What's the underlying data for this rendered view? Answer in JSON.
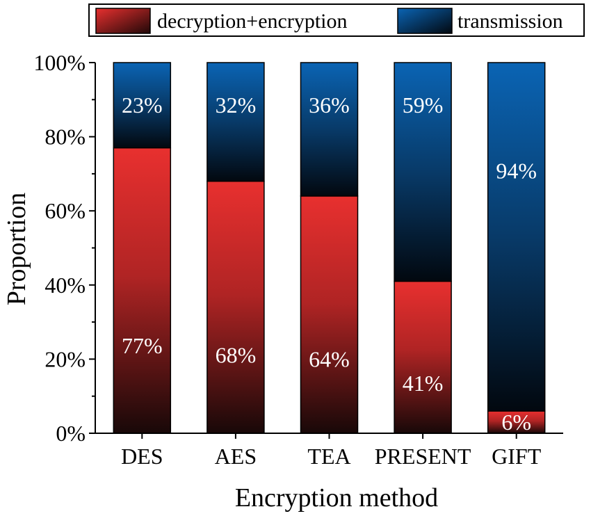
{
  "chart_data": {
    "type": "bar",
    "stacked": true,
    "categories": [
      "DES",
      "AES",
      "TEA",
      "PRESENT",
      "GIFT"
    ],
    "series": [
      {
        "name": "decryption+encryption",
        "values": [
          77,
          68,
          64,
          41,
          6
        ],
        "labels": [
          "77%",
          "68%",
          "64%",
          "41%",
          "6%"
        ],
        "color": "#e8302f"
      },
      {
        "name": "transmission",
        "values": [
          23,
          32,
          36,
          59,
          94
        ],
        "labels": [
          "23%",
          "32%",
          "36%",
          "59%",
          "94%"
        ],
        "color": "#0a64b4"
      }
    ],
    "xlabel": "Encryption method",
    "ylabel": "Proportion",
    "ylim": [
      0,
      100
    ],
    "yticks": [
      "0%",
      "20%",
      "40%",
      "60%",
      "80%",
      "100%"
    ],
    "grid": false,
    "legend_position": "top"
  }
}
